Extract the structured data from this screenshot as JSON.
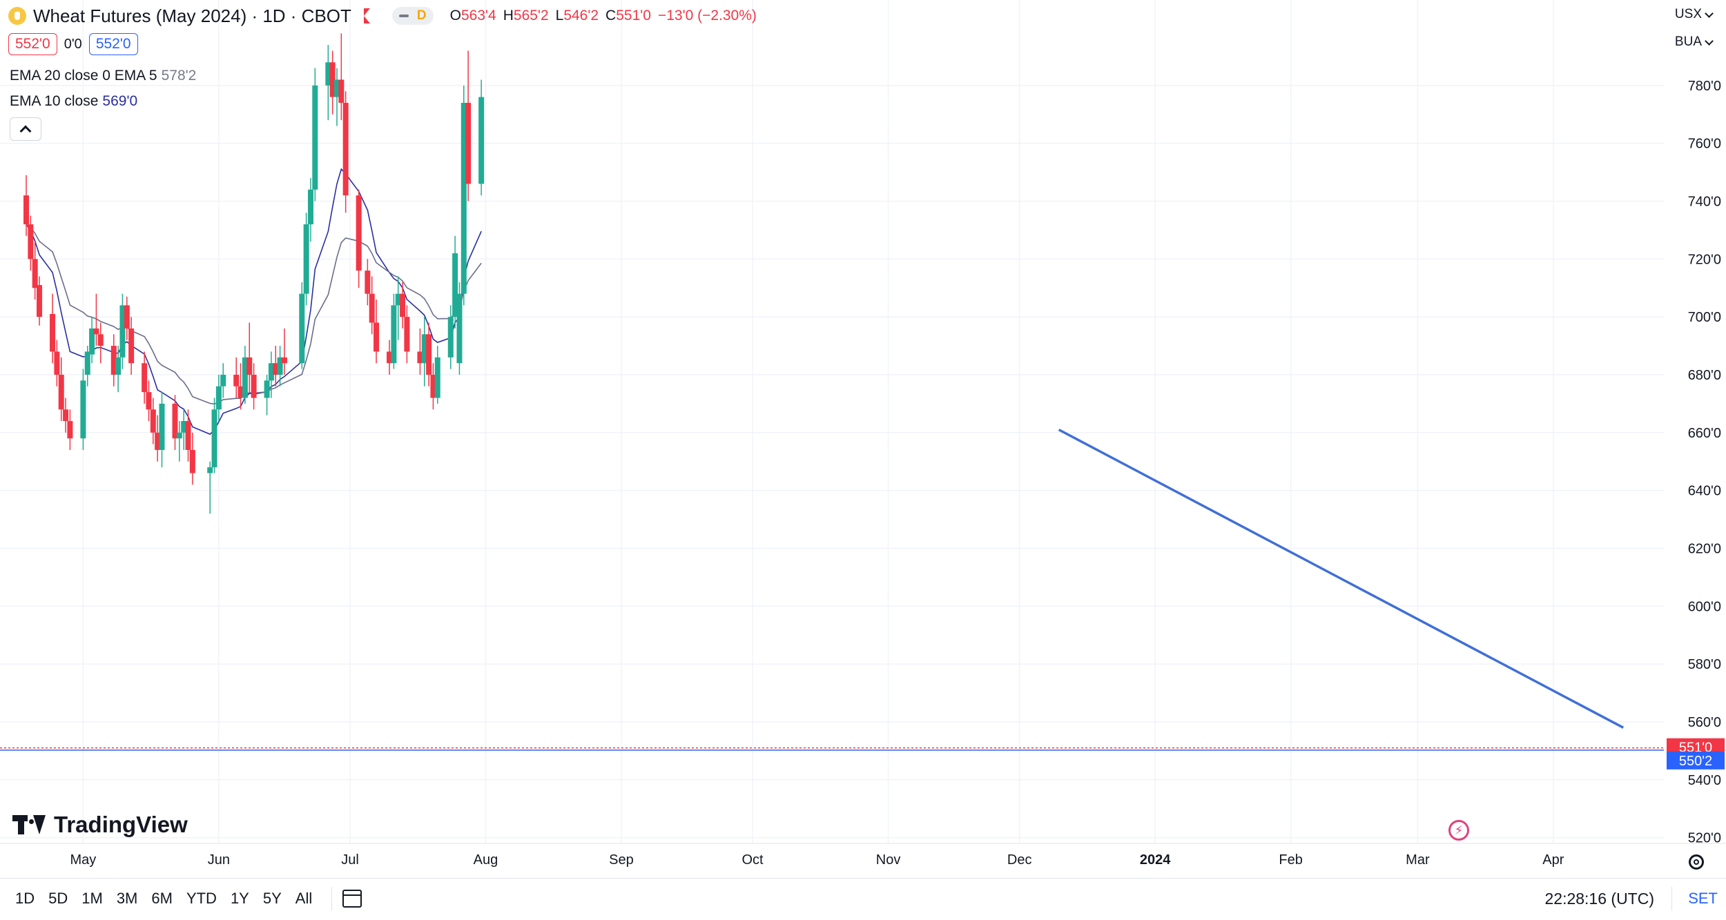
{
  "header": {
    "symbol_title": "Wheat Futures (May 2024) · 1D · CBOT",
    "interval_badge": "D",
    "ohlc": {
      "o_label": "O",
      "o": "563'4",
      "h_label": "H",
      "h": "565'2",
      "l_label": "L",
      "l": "546'2",
      "c_label": "C",
      "c": "551'0",
      "change": "−13'0 (−2.30%)"
    }
  },
  "trade": {
    "sell_price": "552'0",
    "spread": "0'0",
    "buy_price": "552'0"
  },
  "indicators": [
    {
      "label": "EMA 20 close 0 EMA 5",
      "value": "578'2"
    },
    {
      "label": "EMA 10 close",
      "value": "569'0"
    }
  ],
  "right_controls": {
    "currency": "USX",
    "unit": "BUA"
  },
  "branding": {
    "logo_text": "TradingView"
  },
  "bottom": {
    "ranges": [
      "1D",
      "5D",
      "1M",
      "3M",
      "6M",
      "YTD",
      "1Y",
      "5Y",
      "All"
    ],
    "clock": "22:28:16 (UTC)",
    "set_label": "SET"
  },
  "colors": {
    "up": "#22ab94",
    "down": "#f23645",
    "ema_fast": "#2a2ea0",
    "ema_slow": "#6a6d8a",
    "trendline": "#3f6fd8",
    "last_price": "#f23645",
    "bid": "#2962ff"
  },
  "chart_data": {
    "type": "candlestick",
    "x_tick_labels": [
      "May",
      "Jun",
      "Jul",
      "Aug",
      "Sep",
      "Oct",
      "Nov",
      "Dec",
      "2024",
      "Feb",
      "Mar",
      "Apr"
    ],
    "y_tick_labels": [
      "780'0",
      "760'0",
      "740'0",
      "720'0",
      "700'0",
      "680'0",
      "660'0",
      "640'0",
      "620'0",
      "600'0",
      "580'0",
      "560'0",
      "540'0",
      "520'0"
    ],
    "y_ticks": [
      780,
      760,
      740,
      720,
      700,
      680,
      660,
      640,
      620,
      600,
      580,
      560,
      540,
      520
    ],
    "ylim": [
      518,
      800
    ],
    "price_labels": [
      {
        "text": "551'0",
        "value": 551.0,
        "color": "#f23645"
      },
      {
        "text": "550'2",
        "value": 550.25,
        "color": "#2962ff"
      }
    ],
    "trendline": [
      {
        "date": "2023-12-10",
        "value": 661
      },
      {
        "date": "2024-04-17",
        "value": 558
      }
    ],
    "candles": [
      {
        "d": "2023-04-18",
        "o": 742,
        "h": 749,
        "l": 728,
        "c": 732
      },
      {
        "d": "2023-04-19",
        "o": 732,
        "h": 735,
        "l": 716,
        "c": 720
      },
      {
        "d": "2023-04-20",
        "o": 720,
        "h": 726,
        "l": 706,
        "c": 710
      },
      {
        "d": "2023-04-21",
        "o": 711,
        "h": 714,
        "l": 697,
        "c": 700
      },
      {
        "d": "2023-04-24",
        "o": 701,
        "h": 708,
        "l": 684,
        "c": 688
      },
      {
        "d": "2023-04-25",
        "o": 688,
        "h": 692,
        "l": 676,
        "c": 680
      },
      {
        "d": "2023-04-26",
        "o": 680,
        "h": 686,
        "l": 664,
        "c": 668
      },
      {
        "d": "2023-04-27",
        "o": 668,
        "h": 672,
        "l": 660,
        "c": 664
      },
      {
        "d": "2023-04-28",
        "o": 664,
        "h": 668,
        "l": 654,
        "c": 658
      },
      {
        "d": "2023-05-01",
        "o": 658,
        "h": 682,
        "l": 654,
        "c": 678
      },
      {
        "d": "2023-05-02",
        "o": 680,
        "h": 690,
        "l": 676,
        "c": 688
      },
      {
        "d": "2023-05-03",
        "o": 687,
        "h": 700,
        "l": 684,
        "c": 696
      },
      {
        "d": "2023-05-04",
        "o": 696,
        "h": 708,
        "l": 690,
        "c": 694
      },
      {
        "d": "2023-05-05",
        "o": 694,
        "h": 698,
        "l": 684,
        "c": 690
      },
      {
        "d": "2023-05-08",
        "o": 690,
        "h": 694,
        "l": 676,
        "c": 680
      },
      {
        "d": "2023-05-09",
        "o": 680,
        "h": 690,
        "l": 674,
        "c": 686
      },
      {
        "d": "2023-05-10",
        "o": 686,
        "h": 708,
        "l": 682,
        "c": 704
      },
      {
        "d": "2023-05-11",
        "o": 704,
        "h": 707,
        "l": 692,
        "c": 696
      },
      {
        "d": "2023-05-12",
        "o": 696,
        "h": 700,
        "l": 680,
        "c": 684
      },
      {
        "d": "2023-05-15",
        "o": 684,
        "h": 688,
        "l": 670,
        "c": 674
      },
      {
        "d": "2023-05-16",
        "o": 674,
        "h": 678,
        "l": 664,
        "c": 668
      },
      {
        "d": "2023-05-17",
        "o": 668,
        "h": 672,
        "l": 656,
        "c": 660
      },
      {
        "d": "2023-05-18",
        "o": 660,
        "h": 666,
        "l": 650,
        "c": 654
      },
      {
        "d": "2023-05-19",
        "o": 654,
        "h": 674,
        "l": 648,
        "c": 670
      },
      {
        "d": "2023-05-22",
        "o": 670,
        "h": 673,
        "l": 654,
        "c": 658
      },
      {
        "d": "2023-05-23",
        "o": 658,
        "h": 664,
        "l": 650,
        "c": 660
      },
      {
        "d": "2023-05-24",
        "o": 660,
        "h": 668,
        "l": 654,
        "c": 664
      },
      {
        "d": "2023-05-25",
        "o": 664,
        "h": 668,
        "l": 650,
        "c": 654
      },
      {
        "d": "2023-05-26",
        "o": 654,
        "h": 660,
        "l": 642,
        "c": 646
      },
      {
        "d": "2023-05-30",
        "o": 646,
        "h": 650,
        "l": 632,
        "c": 648
      },
      {
        "d": "2023-05-31",
        "o": 648,
        "h": 672,
        "l": 646,
        "c": 668
      },
      {
        "d": "2023-06-01",
        "o": 668,
        "h": 680,
        "l": 664,
        "c": 676
      },
      {
        "d": "2023-06-02",
        "o": 676,
        "h": 684,
        "l": 672,
        "c": 680
      },
      {
        "d": "2023-06-05",
        "o": 680,
        "h": 686,
        "l": 672,
        "c": 676
      },
      {
        "d": "2023-06-06",
        "o": 676,
        "h": 684,
        "l": 668,
        "c": 672
      },
      {
        "d": "2023-06-07",
        "o": 672,
        "h": 690,
        "l": 670,
        "c": 686
      },
      {
        "d": "2023-06-08",
        "o": 686,
        "h": 698,
        "l": 674,
        "c": 680
      },
      {
        "d": "2023-06-09",
        "o": 680,
        "h": 684,
        "l": 668,
        "c": 672
      },
      {
        "d": "2023-06-12",
        "o": 672,
        "h": 680,
        "l": 666,
        "c": 678
      },
      {
        "d": "2023-06-13",
        "o": 678,
        "h": 688,
        "l": 672,
        "c": 684
      },
      {
        "d": "2023-06-14",
        "o": 684,
        "h": 690,
        "l": 676,
        "c": 680
      },
      {
        "d": "2023-06-15",
        "o": 680,
        "h": 690,
        "l": 676,
        "c": 686
      },
      {
        "d": "2023-06-16",
        "o": 686,
        "h": 696,
        "l": 680,
        "c": 684
      },
      {
        "d": "2023-06-20",
        "o": 684,
        "h": 712,
        "l": 682,
        "c": 708
      },
      {
        "d": "2023-06-21",
        "o": 708,
        "h": 736,
        "l": 704,
        "c": 732
      },
      {
        "d": "2023-06-22",
        "o": 732,
        "h": 748,
        "l": 726,
        "c": 744
      },
      {
        "d": "2023-06-23",
        "o": 744,
        "h": 786,
        "l": 740,
        "c": 780
      },
      {
        "d": "2023-06-26",
        "o": 780,
        "h": 794,
        "l": 768,
        "c": 788
      },
      {
        "d": "2023-06-27",
        "o": 788,
        "h": 792,
        "l": 770,
        "c": 776
      },
      {
        "d": "2023-06-28",
        "o": 776,
        "h": 786,
        "l": 766,
        "c": 782
      },
      {
        "d": "2023-06-29",
        "o": 782,
        "h": 798,
        "l": 768,
        "c": 774
      },
      {
        "d": "2023-06-30",
        "o": 774,
        "h": 778,
        "l": 736,
        "c": 742
      },
      {
        "d": "2023-07-03",
        "o": 742,
        "h": 744,
        "l": 710,
        "c": 716
      },
      {
        "d": "2023-07-05",
        "o": 716,
        "h": 720,
        "l": 704,
        "c": 708
      },
      {
        "d": "2023-07-06",
        "o": 708,
        "h": 714,
        "l": 694,
        "c": 698
      },
      {
        "d": "2023-07-07",
        "o": 698,
        "h": 706,
        "l": 684,
        "c": 688
      },
      {
        "d": "2023-07-10",
        "o": 688,
        "h": 692,
        "l": 680,
        "c": 684
      },
      {
        "d": "2023-07-11",
        "o": 684,
        "h": 708,
        "l": 682,
        "c": 704
      },
      {
        "d": "2023-07-12",
        "o": 704,
        "h": 714,
        "l": 692,
        "c": 708
      },
      {
        "d": "2023-07-13",
        "o": 708,
        "h": 712,
        "l": 696,
        "c": 700
      },
      {
        "d": "2023-07-14",
        "o": 700,
        "h": 704,
        "l": 684,
        "c": 688
      },
      {
        "d": "2023-07-17",
        "o": 688,
        "h": 696,
        "l": 680,
        "c": 684
      },
      {
        "d": "2023-07-18",
        "o": 684,
        "h": 700,
        "l": 676,
        "c": 694
      },
      {
        "d": "2023-07-19",
        "o": 694,
        "h": 698,
        "l": 676,
        "c": 680
      },
      {
        "d": "2023-07-20",
        "o": 680,
        "h": 684,
        "l": 668,
        "c": 672
      },
      {
        "d": "2023-07-21",
        "o": 672,
        "h": 690,
        "l": 670,
        "c": 686
      },
      {
        "d": "2023-07-24",
        "o": 686,
        "h": 704,
        "l": 682,
        "c": 700
      },
      {
        "d": "2023-07-25",
        "o": 700,
        "h": 728,
        "l": 696,
        "c": 722
      },
      {
        "d": "2023-07-26",
        "o": 684,
        "h": 712,
        "l": 680,
        "c": 708
      },
      {
        "d": "2023-07-27",
        "o": 708,
        "h": 780,
        "l": 704,
        "c": 774
      },
      {
        "d": "2023-07-28",
        "o": 774,
        "h": 792,
        "l": 740,
        "c": 746
      },
      {
        "d": "2023-07-31",
        "o": 746,
        "h": 782,
        "l": 742,
        "c": 776
      }
    ]
  }
}
